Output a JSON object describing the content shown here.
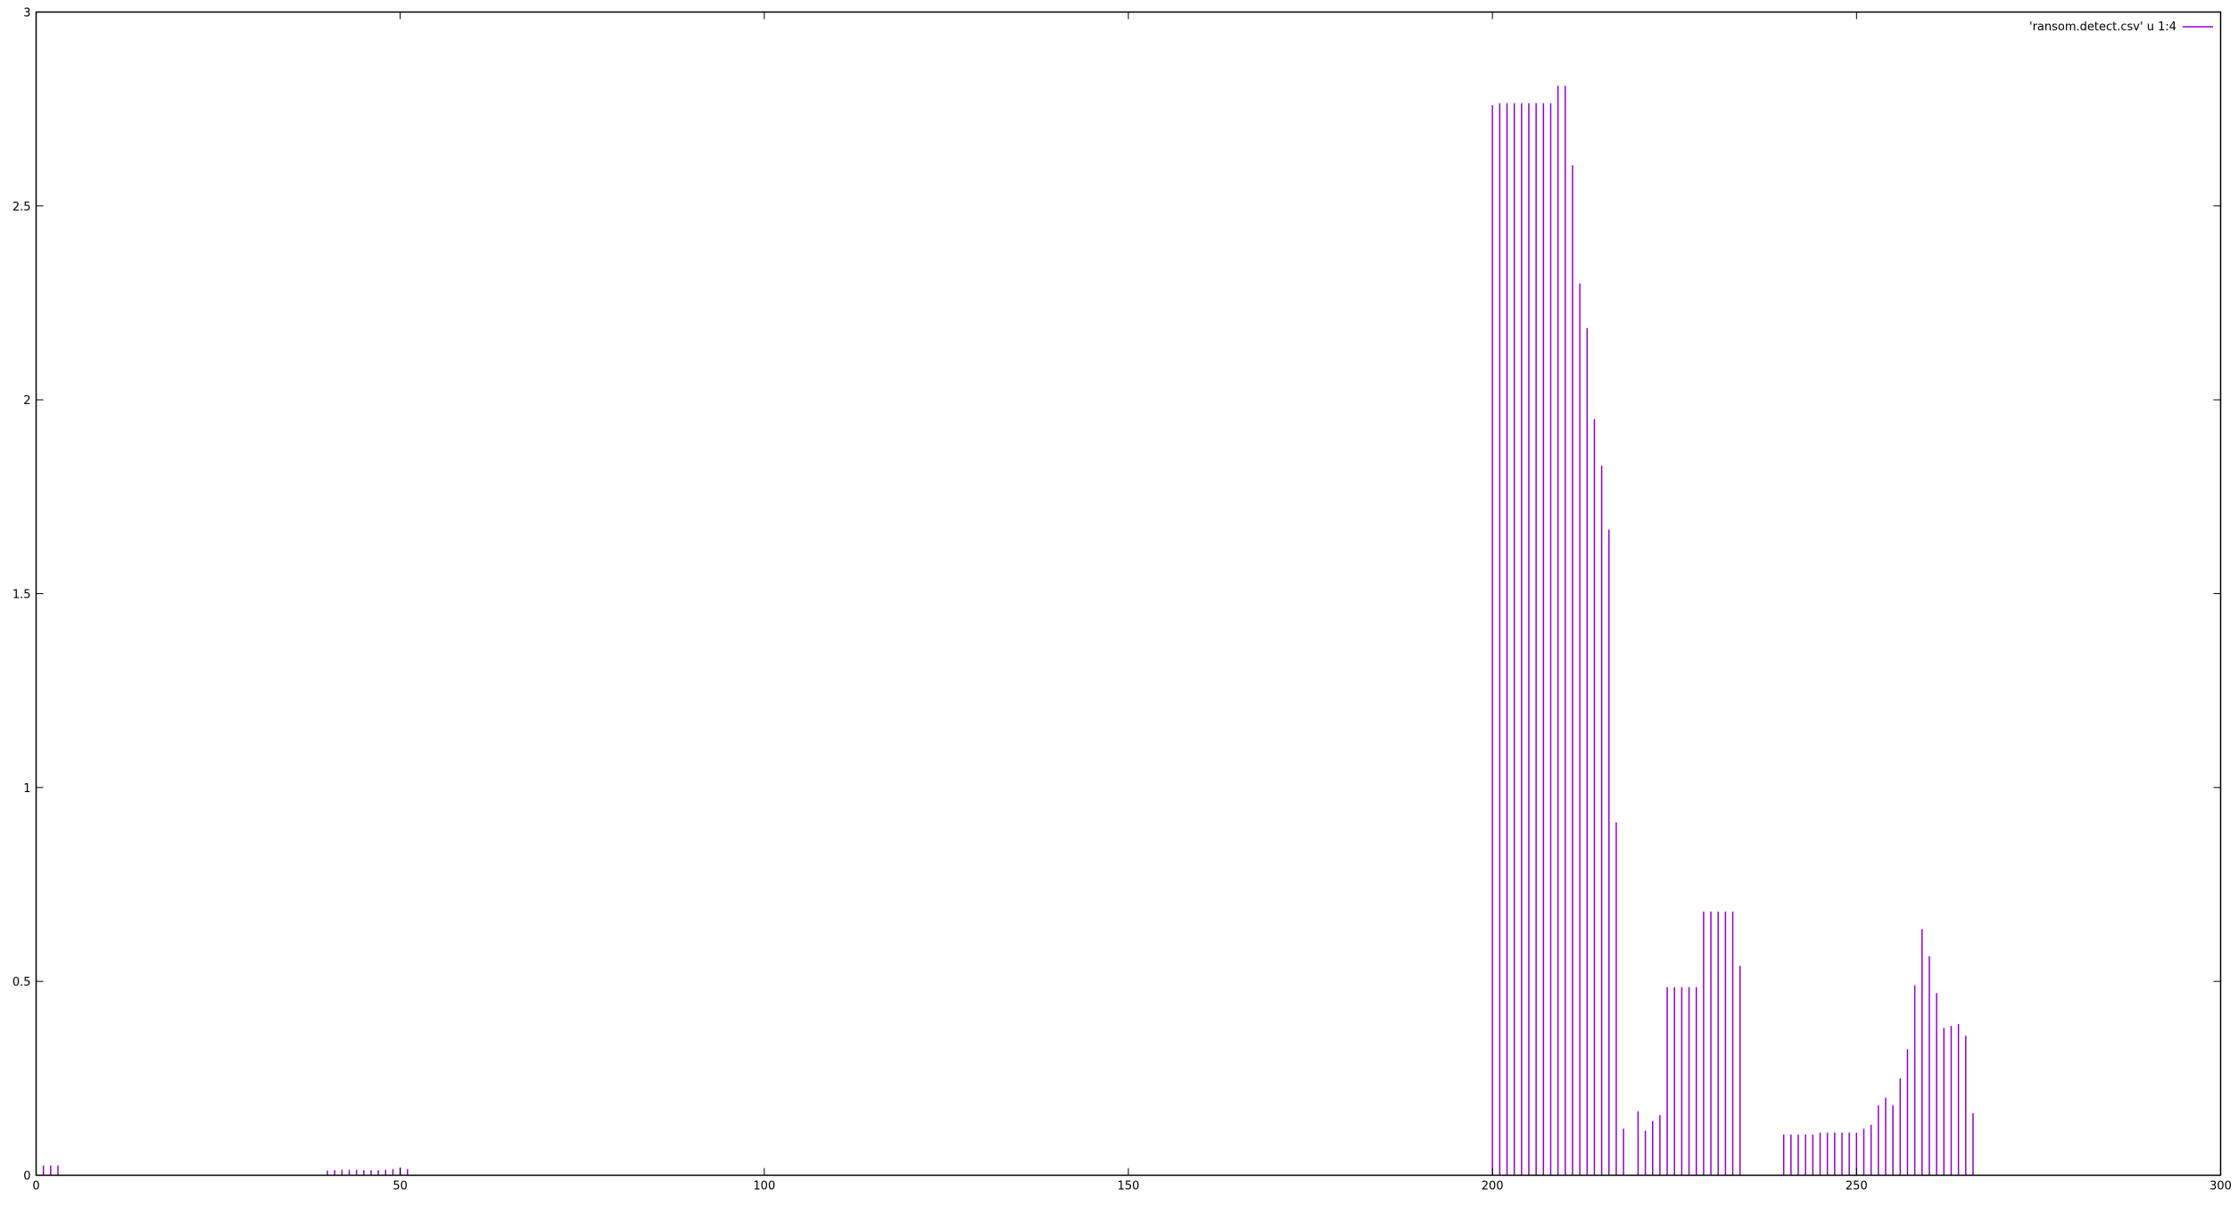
{
  "chart_data": {
    "type": "bar",
    "style": "impulses",
    "title": "",
    "xlabel": "",
    "ylabel": "",
    "xlim": [
      0,
      300
    ],
    "ylim": [
      0,
      3
    ],
    "xticks": [
      0,
      50,
      100,
      150,
      200,
      250,
      300
    ],
    "yticks": [
      0,
      0.5,
      1,
      1.5,
      2,
      2.5,
      3
    ],
    "ytick_labels": [
      "0",
      "0.5",
      "1",
      "1.5",
      "2",
      "2.5",
      "3"
    ],
    "grid": false,
    "legend_position": "top-right",
    "series": [
      {
        "name": "'ransom.detect.csv' u 1:4",
        "color": "#9400d3",
        "points": [
          [
            1,
            0.025
          ],
          [
            2,
            0.025
          ],
          [
            3,
            0.025
          ],
          [
            40,
            0.012
          ],
          [
            41,
            0.013
          ],
          [
            42,
            0.014
          ],
          [
            43,
            0.014
          ],
          [
            44,
            0.014
          ],
          [
            45,
            0.013
          ],
          [
            46,
            0.013
          ],
          [
            47,
            0.013
          ],
          [
            48,
            0.014
          ],
          [
            49,
            0.016
          ],
          [
            50,
            0.02
          ],
          [
            51,
            0.016
          ],
          [
            200,
            2.76
          ],
          [
            201,
            2.765
          ],
          [
            202,
            2.765
          ],
          [
            203,
            2.765
          ],
          [
            204,
            2.765
          ],
          [
            205,
            2.765
          ],
          [
            206,
            2.765
          ],
          [
            207,
            2.765
          ],
          [
            208,
            2.765
          ],
          [
            209,
            2.81
          ],
          [
            210,
            2.81
          ],
          [
            211,
            2.605
          ],
          [
            212,
            2.3
          ],
          [
            213,
            2.185
          ],
          [
            214,
            1.95
          ],
          [
            215,
            1.83
          ],
          [
            216,
            1.665
          ],
          [
            217,
            0.91
          ],
          [
            218,
            0.12
          ],
          [
            220,
            0.165
          ],
          [
            221,
            0.115
          ],
          [
            222,
            0.14
          ],
          [
            223,
            0.155
          ],
          [
            224,
            0.485
          ],
          [
            225,
            0.485
          ],
          [
            226,
            0.485
          ],
          [
            227,
            0.485
          ],
          [
            228,
            0.485
          ],
          [
            229,
            0.68
          ],
          [
            230,
            0.68
          ],
          [
            231,
            0.68
          ],
          [
            232,
            0.68
          ],
          [
            233,
            0.68
          ],
          [
            234,
            0.54
          ],
          [
            240,
            0.105
          ],
          [
            241,
            0.105
          ],
          [
            242,
            0.105
          ],
          [
            243,
            0.105
          ],
          [
            244,
            0.105
          ],
          [
            245,
            0.11
          ],
          [
            246,
            0.11
          ],
          [
            247,
            0.11
          ],
          [
            248,
            0.11
          ],
          [
            249,
            0.11
          ],
          [
            250,
            0.11
          ],
          [
            251,
            0.12
          ],
          [
            252,
            0.13
          ],
          [
            253,
            0.18
          ],
          [
            254,
            0.2
          ],
          [
            255,
            0.18
          ],
          [
            256,
            0.25
          ],
          [
            257,
            0.325
          ],
          [
            258,
            0.49
          ],
          [
            259,
            0.635
          ],
          [
            260,
            0.565
          ],
          [
            261,
            0.47
          ],
          [
            262,
            0.38
          ],
          [
            263,
            0.385
          ],
          [
            264,
            0.39
          ],
          [
            265,
            0.36
          ],
          [
            266,
            0.16
          ]
        ]
      }
    ]
  }
}
